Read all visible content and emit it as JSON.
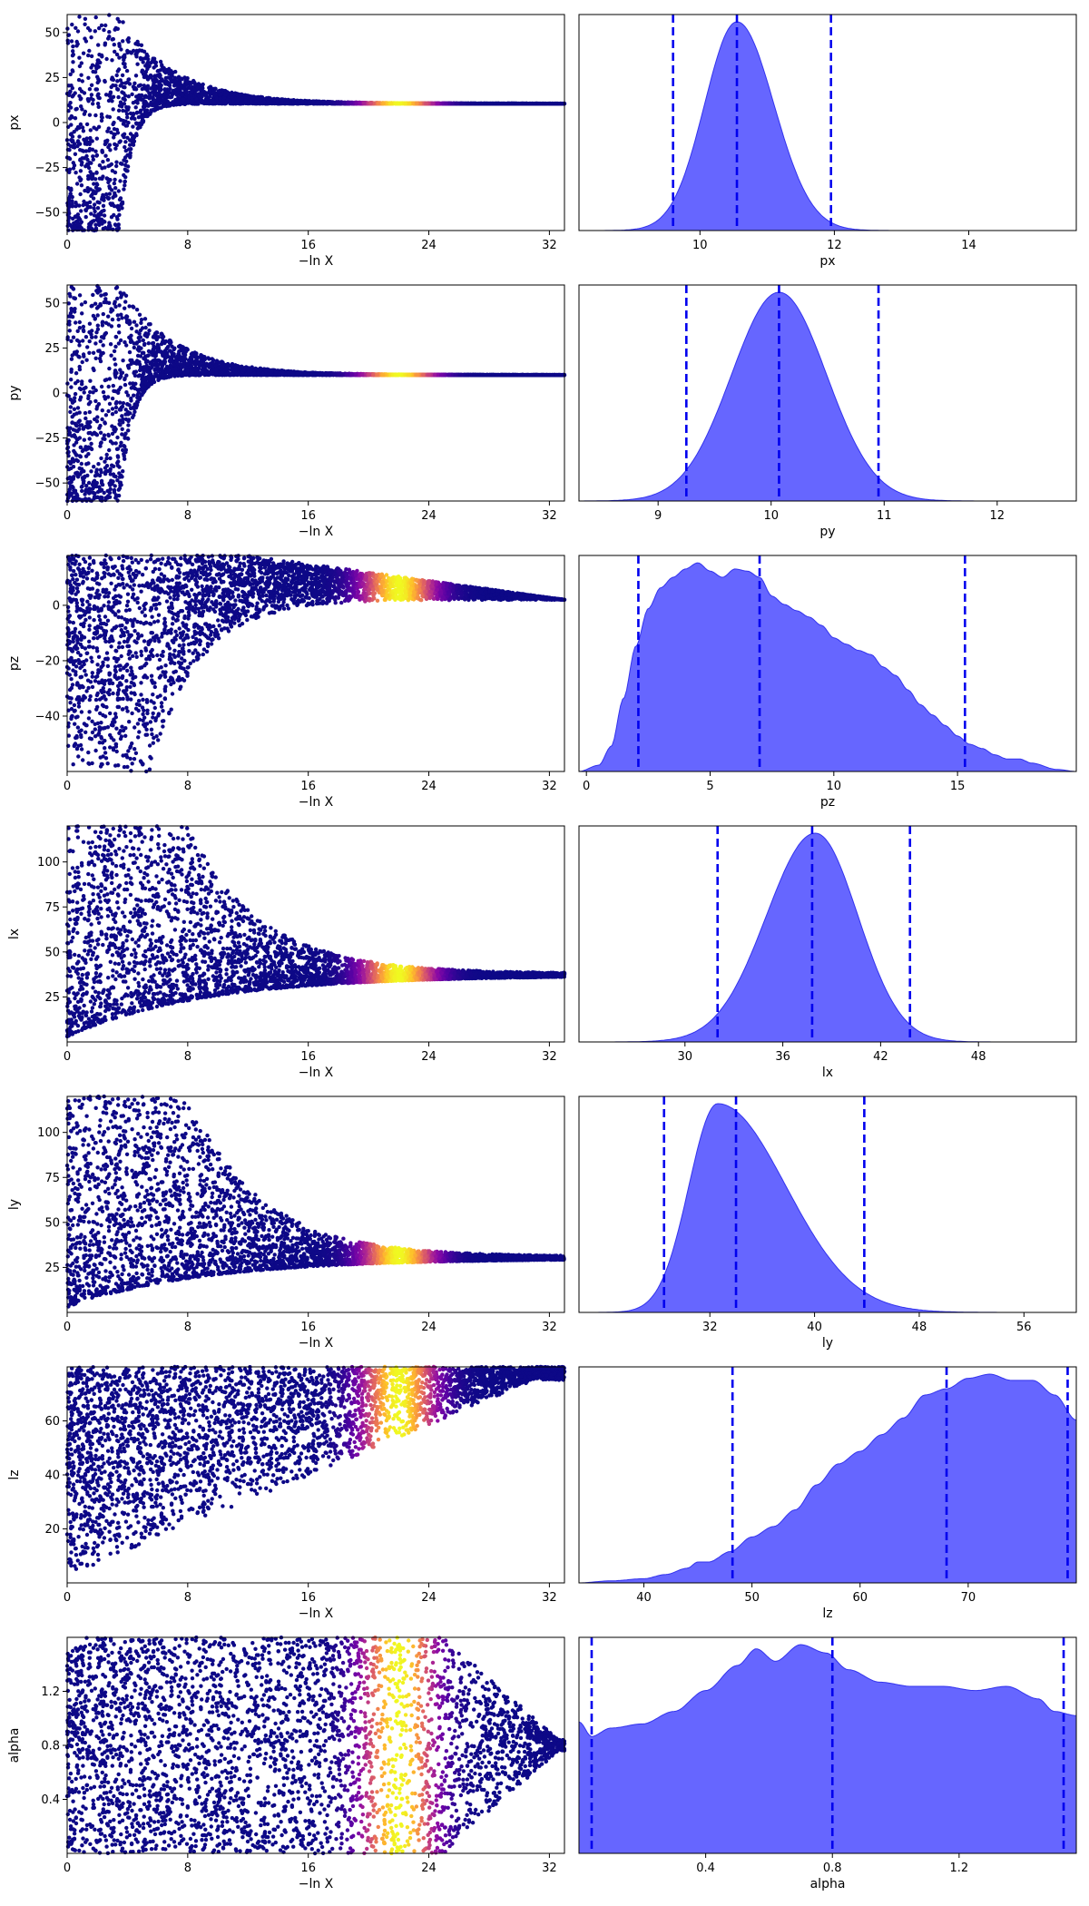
{
  "colors": {
    "density_fill": "#6666ff",
    "density_edge": "#3333ee",
    "quantile_line": "#0000ee",
    "axes": "#000000",
    "trace_colormap": "plasma"
  },
  "chart_data": [
    {
      "type": "scatter",
      "panel": "trace",
      "param": "px",
      "xlabel": "−ln X",
      "ylabel": "px",
      "xlim": [
        0,
        33
      ],
      "ylim": [
        -60,
        60
      ],
      "xticks": [
        0,
        8,
        16,
        24,
        32
      ],
      "yticks": [
        -50,
        -25,
        0,
        25,
        50
      ],
      "converged_value": 10.5,
      "peak_at": 22
    },
    {
      "type": "area",
      "panel": "posterior",
      "param": "px",
      "xlabel": "px",
      "xlim": [
        8.2,
        15.6
      ],
      "xticks": [
        10,
        12,
        14
      ],
      "quantiles": [
        9.6,
        10.55,
        11.95
      ],
      "mode": 10.55,
      "sigma_left": 0.48,
      "sigma_right": 0.55,
      "density": {
        "x": [
          8.6,
          9.0,
          9.4,
          9.8,
          10.2,
          10.55,
          10.9,
          11.3,
          11.7,
          12.1,
          12.6,
          13.2,
          15.6
        ],
        "y": [
          0.0,
          0.03,
          0.12,
          0.42,
          0.82,
          1.0,
          0.86,
          0.56,
          0.27,
          0.1,
          0.03,
          0.01,
          0.0
        ]
      }
    },
    {
      "type": "scatter",
      "panel": "trace",
      "param": "py",
      "xlabel": "−ln X",
      "ylabel": "py",
      "xlim": [
        0,
        33
      ],
      "ylim": [
        -60,
        60
      ],
      "xticks": [
        0,
        8,
        16,
        24,
        32
      ],
      "yticks": [
        -50,
        -25,
        0,
        25,
        50
      ],
      "converged_value": 10,
      "peak_at": 22
    },
    {
      "type": "area",
      "panel": "posterior",
      "param": "py",
      "xlabel": "py",
      "xlim": [
        8.3,
        12.7
      ],
      "xticks": [
        9,
        10,
        11,
        12
      ],
      "quantiles": [
        9.25,
        10.07,
        10.95
      ],
      "mode": 10.07,
      "sigma_left": 0.42,
      "sigma_right": 0.42,
      "density": {
        "x": [
          8.7,
          9.0,
          9.3,
          9.6,
          9.9,
          10.07,
          10.3,
          10.6,
          10.9,
          11.2,
          11.5,
          12.7
        ],
        "y": [
          0.02,
          0.07,
          0.22,
          0.5,
          0.86,
          1.0,
          0.9,
          0.6,
          0.3,
          0.11,
          0.03,
          0.0
        ]
      }
    },
    {
      "type": "scatter",
      "panel": "trace",
      "param": "pz",
      "xlabel": "−ln X",
      "ylabel": "pz",
      "xlim": [
        0,
        33
      ],
      "ylim": [
        -60,
        18
      ],
      "xticks": [
        0,
        8,
        16,
        24,
        32
      ],
      "yticks": [
        -40,
        -20,
        0
      ],
      "converged_value": 2,
      "peak_at": 22
    },
    {
      "type": "area",
      "panel": "posterior",
      "param": "pz",
      "xlabel": "pz",
      "xlim": [
        -0.3,
        19.8
      ],
      "xticks": [
        0,
        5,
        10,
        15
      ],
      "quantiles": [
        2.1,
        7.0,
        15.3
      ],
      "density": {
        "x": [
          -0.3,
          0.5,
          1.0,
          1.5,
          2.0,
          2.5,
          3.0,
          3.5,
          4.0,
          4.5,
          5.0,
          5.5,
          6.0,
          6.5,
          7.0,
          7.5,
          8.0,
          8.5,
          9.0,
          9.5,
          10.0,
          10.5,
          11.0,
          11.5,
          12.0,
          12.5,
          13.0,
          13.5,
          14.0,
          14.5,
          15.0,
          15.5,
          16.0,
          16.5,
          17.0,
          17.5,
          18.0,
          19.0,
          19.8
        ],
        "y": [
          0.0,
          0.03,
          0.12,
          0.35,
          0.6,
          0.78,
          0.88,
          0.93,
          0.97,
          1.0,
          0.96,
          0.93,
          0.97,
          0.96,
          0.93,
          0.84,
          0.8,
          0.77,
          0.74,
          0.7,
          0.64,
          0.61,
          0.58,
          0.56,
          0.5,
          0.46,
          0.39,
          0.32,
          0.27,
          0.22,
          0.17,
          0.13,
          0.11,
          0.08,
          0.06,
          0.06,
          0.04,
          0.01,
          0.0
        ]
      }
    },
    {
      "type": "scatter",
      "panel": "trace",
      "param": "lx",
      "xlabel": "−ln X",
      "ylabel": "lx",
      "xlim": [
        0,
        33
      ],
      "ylim": [
        0,
        120
      ],
      "xticks": [
        0,
        8,
        16,
        24,
        32
      ],
      "yticks": [
        25,
        50,
        75,
        100
      ],
      "converged_value": 38,
      "peak_at": 22
    },
    {
      "type": "area",
      "panel": "posterior",
      "param": "lx",
      "xlabel": "lx",
      "xlim": [
        23.5,
        54
      ],
      "xticks": [
        30,
        36,
        42,
        48
      ],
      "quantiles": [
        32.0,
        37.8,
        43.8
      ],
      "mode": 38.0,
      "sigma_left": 3.0,
      "sigma_right": 2.6,
      "density": {
        "x": [
          25,
          28,
          30,
          32,
          34,
          36,
          37,
          38,
          39,
          40,
          42,
          44,
          46,
          48,
          50,
          54
        ],
        "y": [
          0.0,
          0.02,
          0.08,
          0.28,
          0.52,
          0.77,
          0.92,
          1.0,
          0.96,
          0.84,
          0.56,
          0.26,
          0.08,
          0.03,
          0.0,
          0.0
        ]
      }
    },
    {
      "type": "scatter",
      "panel": "trace",
      "param": "ly",
      "xlabel": "−ln X",
      "ylabel": "ly",
      "xlim": [
        0,
        33
      ],
      "ylim": [
        0,
        120
      ],
      "xticks": [
        0,
        8,
        16,
        24,
        32
      ],
      "yticks": [
        25,
        50,
        75,
        100
      ],
      "converged_value": 31,
      "peak_at": 22
    },
    {
      "type": "area",
      "panel": "posterior",
      "param": "ly",
      "xlabel": "ly",
      "xlim": [
        22,
        60
      ],
      "xticks": [
        32,
        40,
        48,
        56
      ],
      "quantiles": [
        28.5,
        34.0,
        43.8
      ],
      "mode": 32.6,
      "sigma_left": 2.2,
      "sigma_right": 5.2,
      "density": {
        "x": [
          24,
          26,
          28,
          30,
          31,
          32,
          33,
          34,
          36,
          38,
          40,
          41,
          42,
          44,
          46,
          48,
          52,
          60
        ],
        "y": [
          0.0,
          0.04,
          0.15,
          0.55,
          0.85,
          0.98,
          1.0,
          0.93,
          0.74,
          0.54,
          0.42,
          0.34,
          0.27,
          0.12,
          0.06,
          0.03,
          0.0,
          0.0
        ]
      }
    },
    {
      "type": "scatter",
      "panel": "trace",
      "param": "lz",
      "xlabel": "−ln X",
      "ylabel": "lz",
      "xlim": [
        0,
        33
      ],
      "ylim": [
        0,
        80
      ],
      "xticks": [
        0,
        8,
        16,
        24,
        32
      ],
      "yticks": [
        20,
        40,
        60
      ],
      "converged_value": 77,
      "peak_at": 22
    },
    {
      "type": "area",
      "panel": "posterior",
      "param": "lz",
      "xlabel": "lz",
      "xlim": [
        34,
        80
      ],
      "xticks": [
        40,
        50,
        60,
        70
      ],
      "quantiles": [
        48.2,
        68.0,
        79.2
      ],
      "density": {
        "x": [
          34,
          37,
          40,
          42,
          44,
          45,
          46,
          48,
          50,
          52,
          54,
          56,
          58,
          60,
          62,
          64,
          66,
          68,
          70,
          72,
          74,
          76,
          78,
          80
        ],
        "y": [
          0.0,
          0.01,
          0.02,
          0.04,
          0.07,
          0.1,
          0.1,
          0.15,
          0.22,
          0.27,
          0.35,
          0.47,
          0.57,
          0.63,
          0.71,
          0.79,
          0.9,
          0.93,
          0.98,
          1.0,
          0.97,
          0.97,
          0.9,
          0.78
        ]
      }
    },
    {
      "type": "scatter",
      "panel": "trace",
      "param": "alpha",
      "xlabel": "−ln X",
      "ylabel": "alpha",
      "xlim": [
        0,
        33
      ],
      "ylim": [
        0,
        1.6
      ],
      "xticks": [
        0,
        8,
        16,
        24,
        32
      ],
      "yticks": [
        0.4,
        0.8,
        1.2
      ],
      "converged_value": 0.8,
      "peak_at": 22
    },
    {
      "type": "area",
      "panel": "posterior",
      "param": "alpha",
      "xlabel": "alpha",
      "xlim": [
        0,
        1.57
      ],
      "xticks": [
        0.4,
        0.8,
        1.2
      ],
      "quantiles": [
        0.04,
        0.8,
        1.53
      ],
      "density": {
        "x": [
          0.0,
          0.04,
          0.1,
          0.2,
          0.3,
          0.4,
          0.5,
          0.56,
          0.62,
          0.7,
          0.78,
          0.85,
          0.95,
          1.05,
          1.15,
          1.25,
          1.35,
          1.45,
          1.5,
          1.57
        ],
        "y": [
          0.63,
          0.56,
          0.6,
          0.62,
          0.68,
          0.78,
          0.9,
          0.98,
          0.92,
          1.0,
          0.96,
          0.88,
          0.82,
          0.8,
          0.8,
          0.78,
          0.8,
          0.74,
          0.68,
          0.66
        ]
      }
    }
  ]
}
